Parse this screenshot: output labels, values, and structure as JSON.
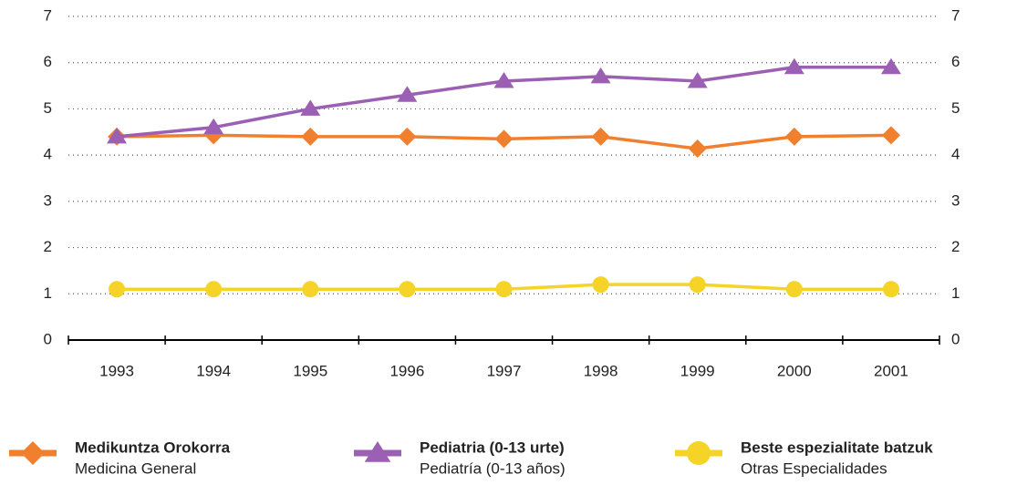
{
  "chart_data": {
    "type": "line",
    "categories": [
      "1993",
      "1994",
      "1995",
      "1996",
      "1997",
      "1998",
      "1999",
      "2000",
      "2001"
    ],
    "series": [
      {
        "name": "Medikuntza Orokorra",
        "subtitle": "Medicina General",
        "color": "#f07f2e",
        "marker": "diamond",
        "values": [
          4.4,
          4.43,
          4.4,
          4.4,
          4.35,
          4.4,
          4.14,
          4.4,
          4.43
        ]
      },
      {
        "name": "Pediatria (0-13 urte)",
        "subtitle": "Pediatría (0-13 años)",
        "color": "#9b5fb3",
        "marker": "triangle",
        "values": [
          4.4,
          4.6,
          5.0,
          5.3,
          5.6,
          5.7,
          5.6,
          5.9,
          5.9
        ]
      },
      {
        "name": "Beste espezialitate batzuk",
        "subtitle": "Otras Especialidades",
        "color": "#f5d327",
        "marker": "circle",
        "values": [
          1.1,
          1.1,
          1.1,
          1.1,
          1.1,
          1.2,
          1.2,
          1.1,
          1.1
        ]
      }
    ],
    "ylim": [
      0,
      7
    ],
    "yticks": [
      0,
      1,
      2,
      3,
      4,
      5,
      6,
      7
    ],
    "grid": true,
    "legend": "bottom"
  }
}
